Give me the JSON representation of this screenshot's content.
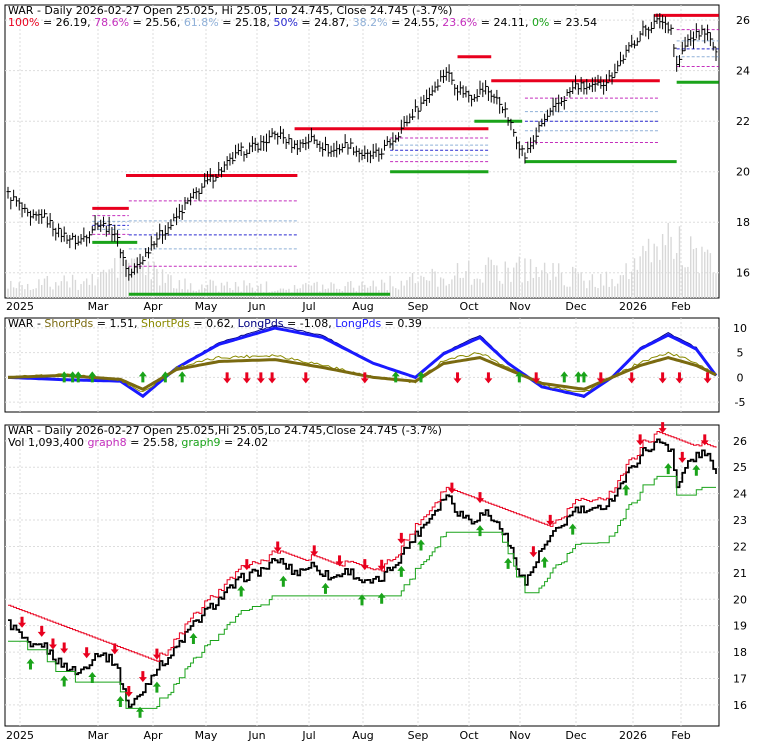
{
  "chart_data": [
    {
      "type": "line",
      "panel": "price-fibonacci",
      "header": {
        "title": "WAR - Daily 2026-02-27 Open 25.025, Hi 25.05, Lo 24.745, Close 24.745 (-3.7%)",
        "fib_levels": [
          {
            "label": "100%",
            "value": "26.19",
            "color": "#e8001e"
          },
          {
            "label": "78.6%",
            "value": "25.56",
            "color": "#c42fbd"
          },
          {
            "label": "61.8%",
            "value": "25.18",
            "color": "#8fb0d8"
          },
          {
            "label": "50%",
            "value": "24.87",
            "color": "#2a2ad0"
          },
          {
            "label": "38.2%",
            "value": "24.55",
            "color": "#8fb0d8"
          },
          {
            "label": "23.6%",
            "value": "24.11",
            "color": "#c42fbd"
          },
          {
            "label": "0%",
            "value": "23.54",
            "color": "#1aa31a"
          }
        ]
      },
      "x_labels": [
        "2025",
        "Mar",
        "Apr",
        "May",
        "Jun",
        "Jul",
        "Aug",
        "Sep",
        "Oct",
        "Nov",
        "Dec",
        "2026",
        "Feb"
      ],
      "y_ticks": [
        16,
        18,
        20,
        22,
        24,
        26
      ],
      "ylim": [
        15,
        26.6
      ],
      "close_anchors": [
        [
          0,
          19.1
        ],
        [
          3,
          18.8
        ],
        [
          8,
          18.1
        ],
        [
          12,
          18.3
        ],
        [
          18,
          17.6
        ],
        [
          25,
          17.2
        ],
        [
          32,
          18.0
        ],
        [
          38,
          17.6
        ],
        [
          43,
          15.9
        ],
        [
          47,
          16.4
        ],
        [
          52,
          17.3
        ],
        [
          58,
          17.9
        ],
        [
          64,
          18.8
        ],
        [
          70,
          19.5
        ],
        [
          76,
          20.1
        ],
        [
          83,
          20.8
        ],
        [
          90,
          21.1
        ],
        [
          96,
          21.5
        ],
        [
          102,
          21.0
        ],
        [
          108,
          21.3
        ],
        [
          115,
          20.8
        ],
        [
          121,
          21.1
        ],
        [
          127,
          20.6
        ],
        [
          132,
          20.7
        ],
        [
          138,
          21.4
        ],
        [
          144,
          22.3
        ],
        [
          150,
          23.1
        ],
        [
          156,
          24.0
        ],
        [
          160,
          23.3
        ],
        [
          165,
          23.0
        ],
        [
          170,
          23.3
        ],
        [
          176,
          22.6
        ],
        [
          181,
          21.3
        ],
        [
          184,
          20.6
        ],
        [
          190,
          21.9
        ],
        [
          196,
          22.7
        ],
        [
          202,
          23.4
        ],
        [
          208,
          23.3
        ],
        [
          214,
          23.7
        ],
        [
          220,
          24.7
        ],
        [
          226,
          25.6
        ],
        [
          232,
          26.0
        ],
        [
          236,
          25.7
        ],
        [
          238,
          24.2
        ],
        [
          242,
          25.2
        ],
        [
          248,
          25.6
        ],
        [
          252,
          24.75
        ]
      ],
      "volume_anchors": [
        [
          0,
          0.12
        ],
        [
          30,
          0.15
        ],
        [
          42,
          0.35
        ],
        [
          60,
          0.12
        ],
        [
          100,
          0.1
        ],
        [
          140,
          0.14
        ],
        [
          160,
          0.22
        ],
        [
          185,
          0.28
        ],
        [
          210,
          0.14
        ],
        [
          225,
          0.3
        ],
        [
          235,
          0.55
        ],
        [
          252,
          0.25
        ]
      ],
      "resistance_lines": [
        {
          "from": 30,
          "to": 43,
          "y": 18.55
        },
        {
          "from": 42,
          "to": 103,
          "y": 19.85
        },
        {
          "from": 102,
          "to": 171,
          "y": 21.7
        },
        {
          "from": 160,
          "to": 172,
          "y": 24.55
        },
        {
          "from": 172,
          "to": 232,
          "y": 23.6
        },
        {
          "from": 230,
          "to": 253,
          "y": 26.19
        }
      ],
      "support_lines": [
        {
          "from": 30,
          "to": 46,
          "y": 17.2
        },
        {
          "from": 43,
          "to": 136,
          "y": 15.15
        },
        {
          "from": 136,
          "to": 171,
          "y": 20.0
        },
        {
          "from": 166,
          "to": 183,
          "y": 22.0
        },
        {
          "from": 184,
          "to": 238,
          "y": 20.4
        },
        {
          "from": 238,
          "to": 253,
          "y": 23.54
        }
      ]
    },
    {
      "type": "line",
      "panel": "short-long-pds",
      "header": {
        "name": "WAR",
        "items": [
          {
            "label": "ShortPds",
            "value": "1.51",
            "color": "#7a6a10"
          },
          {
            "label": "ShortPds",
            "value": "0.62",
            "color": "#8a8a00"
          },
          {
            "label": "LongPds",
            "value": "-1.08",
            "color": "#000080"
          },
          {
            "label": "LongPds",
            "value": "0.39",
            "color": "#1a1aff"
          }
        ]
      },
      "y_ticks": [
        -5,
        0,
        5,
        10
      ],
      "ylim": [
        -7,
        12
      ],
      "long_anchors": [
        [
          0,
          0
        ],
        [
          20,
          -0.5
        ],
        [
          40,
          -0.8
        ],
        [
          48,
          -4
        ],
        [
          60,
          2
        ],
        [
          75,
          7
        ],
        [
          95,
          10.5
        ],
        [
          112,
          8.5
        ],
        [
          130,
          3
        ],
        [
          145,
          0
        ],
        [
          155,
          5
        ],
        [
          168,
          8.5
        ],
        [
          178,
          3
        ],
        [
          190,
          -2
        ],
        [
          205,
          -4
        ],
        [
          215,
          0
        ],
        [
          225,
          6
        ],
        [
          235,
          9
        ],
        [
          245,
          6
        ],
        [
          252,
          0.39
        ]
      ],
      "short_anchors": [
        [
          0,
          0
        ],
        [
          20,
          0.5
        ],
        [
          40,
          -0.5
        ],
        [
          48,
          -3
        ],
        [
          60,
          2
        ],
        [
          75,
          4
        ],
        [
          95,
          4.5
        ],
        [
          112,
          2.5
        ],
        [
          130,
          0
        ],
        [
          145,
          -1
        ],
        [
          155,
          3.5
        ],
        [
          168,
          5
        ],
        [
          178,
          2
        ],
        [
          190,
          -1.5
        ],
        [
          205,
          -3
        ],
        [
          215,
          0
        ],
        [
          225,
          3
        ],
        [
          235,
          5
        ],
        [
          245,
          3
        ],
        [
          252,
          0.62
        ]
      ],
      "up_arrow_bars": [
        20,
        23,
        25,
        30,
        48,
        56,
        62,
        138,
        147,
        182,
        198,
        203,
        205
      ],
      "down_arrow_bars": [
        78,
        85,
        90,
        94,
        106,
        127,
        160,
        171,
        188,
        211,
        222,
        233,
        239,
        249
      ]
    },
    {
      "type": "line",
      "panel": "price-step",
      "header": {
        "title": "WAR - Daily 2026-02-27 Open 25.025,Hi 25.05,Lo 24.745,Close 24.745 (-3.7%)",
        "vol": "Vol 1,093,400",
        "graph8_label": "graph8",
        "graph8_value": "= 25.58",
        "graph9_label": "graph9",
        "graph9_value": "= 24.02"
      },
      "x_labels": [
        "2025",
        "Mar",
        "Apr",
        "May",
        "Jun",
        "Jul",
        "Aug",
        "Sep",
        "Oct",
        "Nov",
        "Dec",
        "2026",
        "Feb"
      ],
      "y_ticks": [
        16,
        17,
        18,
        19,
        20,
        21,
        22,
        23,
        24,
        25,
        26
      ],
      "ylim": [
        15.2,
        26.6
      ],
      "down_arrow_bars": [
        5,
        12,
        16,
        20,
        28,
        38,
        43,
        48,
        53,
        85,
        96,
        109,
        118,
        127,
        133,
        140,
        158,
        168,
        187,
        193,
        225,
        233,
        240,
        248,
        253
      ],
      "up_arrow_bars": [
        8,
        20,
        30,
        40,
        47,
        53,
        66,
        83,
        98,
        113,
        126,
        133,
        140,
        147,
        168,
        178,
        191,
        201,
        220,
        235,
        245
      ]
    }
  ]
}
